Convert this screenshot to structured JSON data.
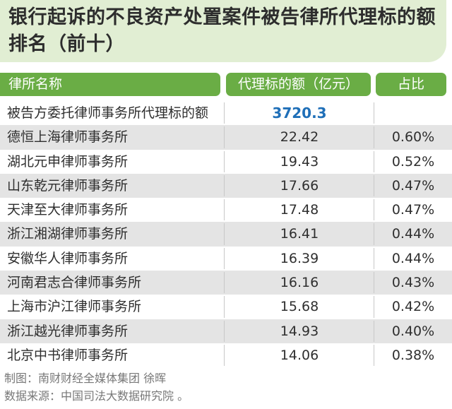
{
  "title": "银行起诉的不良资产处置案件被告律所代理标的额排名（前十）",
  "header": {
    "name": "律所名称",
    "amount": "代理标的额（亿元）",
    "share": "占比"
  },
  "rows": [
    {
      "name": "被告方委托律师事务所代理标的额",
      "amount": "3720.3",
      "share": ""
    },
    {
      "name": "德恒上海律师事务所",
      "amount": "22.42",
      "share": "0.60%"
    },
    {
      "name": "湖北元申律师事务所",
      "amount": "19.43",
      "share": "0.52%"
    },
    {
      "name": "山东乾元律师事务所",
      "amount": "17.66",
      "share": "0.47%"
    },
    {
      "name": "天津至大律师事务所",
      "amount": "17.48",
      "share": "0.47%"
    },
    {
      "name": "浙江湘湖律师事务所",
      "amount": "16.41",
      "share": "0.44%"
    },
    {
      "name": "安徽华人律师事务所",
      "amount": "16.39",
      "share": "0.44%"
    },
    {
      "name": "河南君志合律师事务所",
      "amount": "16.16",
      "share": "0.43%"
    },
    {
      "name": "上海市沪江律师事务所",
      "amount": "15.68",
      "share": "0.42%"
    },
    {
      "name": "浙江越光律师事务所",
      "amount": "14.93",
      "share": "0.40%"
    },
    {
      "name": "北京中书律师事务所",
      "amount": "14.06",
      "share": "0.38%"
    }
  ],
  "footer": {
    "credit": "制图：南财财经全媒体集团 徐晖",
    "source": "数据来源：中国司法大数据研究院 。"
  },
  "colors": {
    "title_bg": "#e1eed3",
    "header_bg": "#6aad45",
    "row_shade": "#e4e4e4",
    "highlight_text": "#1f6fb8"
  }
}
